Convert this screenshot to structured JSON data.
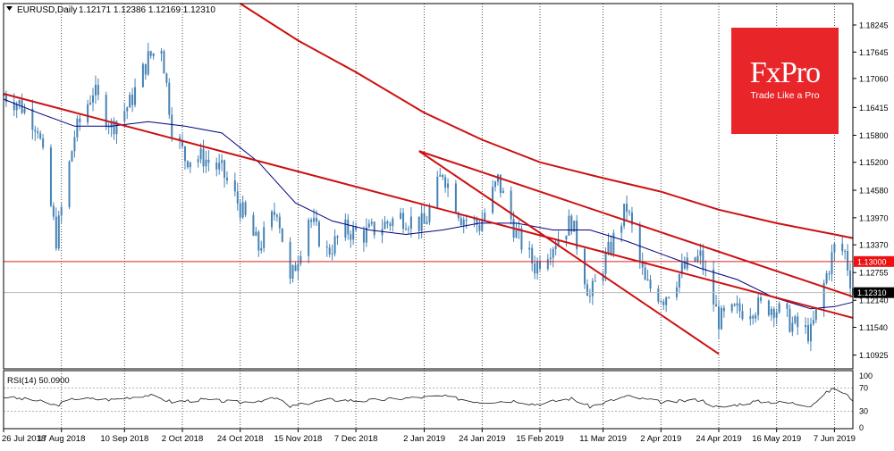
{
  "header": {
    "symbol": "EURUSD,Daily",
    "ohlc": "1.12171 1.12386 1.12169 1.12310"
  },
  "brand": {
    "name": "FxPro",
    "tagline": "Trade Like a Pro"
  },
  "colors": {
    "candle": "#4682b4",
    "ma_fast": "#00007f",
    "ma_slow": "#cc1111",
    "channel": "#cc1111",
    "level_line": "#dd2222",
    "level_badge": "#ee1111",
    "price_badge": "#000000",
    "rsi_line": "#1a1a1a",
    "brand_bg": "#e8262a"
  },
  "chart_data": {
    "type": "candlestick",
    "symbol": "EURUSD",
    "timeframe": "Daily",
    "x_range": [
      "2018-07-26",
      "2019-06-14"
    ],
    "ylim": [
      1.1062,
      1.1872
    ],
    "y_ticks": [
      "1.18245",
      "1.17645",
      "1.17060",
      "1.16415",
      "1.15800",
      "1.15200",
      "1.14580",
      "1.13970",
      "1.13370",
      "1.12755",
      "1.12140",
      "1.11540",
      "1.10925"
    ],
    "x_ticks": [
      "26 Jul 2018",
      "17 Aug 2018",
      "10 Sep 2018",
      "2 Oct 2018",
      "24 Oct 2018",
      "15 Nov 2018",
      "7 Dec 2018",
      "2 Jan 2019",
      "24 Jan 2019",
      "15 Feb 2019",
      "11 Mar 2019",
      "2 Apr 2019",
      "24 Apr 2019",
      "16 May 2019",
      "7 Jun 2019"
    ],
    "close_path": [
      [
        "2018-07-26",
        1.167
      ],
      [
        "2018-08-01",
        1.165
      ],
      [
        "2018-08-08",
        1.16
      ],
      [
        "2018-08-15",
        1.135
      ],
      [
        "2018-08-22",
        1.158
      ],
      [
        "2018-08-29",
        1.168
      ],
      [
        "2018-09-05",
        1.16
      ],
      [
        "2018-09-12",
        1.165
      ],
      [
        "2018-09-19",
        1.175
      ],
      [
        "2018-09-24",
        1.178
      ],
      [
        "2018-09-28",
        1.16
      ],
      [
        "2018-10-03",
        1.153
      ],
      [
        "2018-10-10",
        1.153
      ],
      [
        "2018-10-17",
        1.15
      ],
      [
        "2018-10-24",
        1.142
      ],
      [
        "2018-10-31",
        1.133
      ],
      [
        "2018-11-07",
        1.142
      ],
      [
        "2018-11-12",
        1.125
      ],
      [
        "2018-11-19",
        1.14
      ],
      [
        "2018-11-26",
        1.132
      ],
      [
        "2018-12-03",
        1.137
      ],
      [
        "2018-12-10",
        1.136
      ],
      [
        "2018-12-17",
        1.138
      ],
      [
        "2018-12-24",
        1.14
      ],
      [
        "2019-01-02",
        1.138
      ],
      [
        "2019-01-09",
        1.15
      ],
      [
        "2019-01-16",
        1.14
      ],
      [
        "2019-01-23",
        1.138
      ],
      [
        "2019-01-30",
        1.148
      ],
      [
        "2019-02-06",
        1.136
      ],
      [
        "2019-02-13",
        1.129
      ],
      [
        "2019-02-20",
        1.134
      ],
      [
        "2019-02-27",
        1.139
      ],
      [
        "2019-03-06",
        1.122
      ],
      [
        "2019-03-13",
        1.132
      ],
      [
        "2019-03-20",
        1.142
      ],
      [
        "2019-03-27",
        1.125
      ],
      [
        "2019-04-03",
        1.122
      ],
      [
        "2019-04-10",
        1.128
      ],
      [
        "2019-04-17",
        1.131
      ],
      [
        "2019-04-24",
        1.117
      ],
      [
        "2019-05-01",
        1.119
      ],
      [
        "2019-05-08",
        1.12
      ],
      [
        "2019-05-15",
        1.12
      ],
      [
        "2019-05-22",
        1.116
      ],
      [
        "2019-05-29",
        1.114
      ],
      [
        "2019-06-04",
        1.127
      ],
      [
        "2019-06-07",
        1.133
      ],
      [
        "2019-06-11",
        1.132
      ],
      [
        "2019-06-14",
        1.1231
      ]
    ],
    "ma_fast_path": [
      [
        "2018-07-26",
        1.166
      ],
      [
        "2018-08-08",
        1.163
      ],
      [
        "2018-08-22",
        1.16
      ],
      [
        "2018-09-05",
        1.16
      ],
      [
        "2018-09-19",
        1.161
      ],
      [
        "2018-10-03",
        1.16
      ],
      [
        "2018-10-17",
        1.1585
      ],
      [
        "2018-10-31",
        1.152
      ],
      [
        "2018-11-14",
        1.143
      ],
      [
        "2018-11-28",
        1.139
      ],
      [
        "2018-12-12",
        1.137
      ],
      [
        "2018-12-26",
        1.136
      ],
      [
        "2019-01-09",
        1.137
      ],
      [
        "2019-01-23",
        1.1385
      ],
      [
        "2019-02-06",
        1.1385
      ],
      [
        "2019-02-20",
        1.137
      ],
      [
        "2019-03-06",
        1.137
      ],
      [
        "2019-03-20",
        1.1345
      ],
      [
        "2019-04-03",
        1.1315
      ],
      [
        "2019-04-17",
        1.1285
      ],
      [
        "2019-05-01",
        1.126
      ],
      [
        "2019-05-15",
        1.122
      ],
      [
        "2019-05-29",
        1.1195
      ],
      [
        "2019-06-07",
        1.12
      ],
      [
        "2019-06-14",
        1.121
      ]
    ],
    "ma_slow_path": [
      [
        "2018-10-24",
        1.1872
      ],
      [
        "2018-11-15",
        1.179
      ],
      [
        "2018-12-07",
        1.172
      ],
      [
        "2019-01-02",
        1.163
      ],
      [
        "2019-01-24",
        1.157
      ],
      [
        "2019-02-15",
        1.152
      ],
      [
        "2019-03-11",
        1.1485
      ],
      [
        "2019-04-02",
        1.1455
      ],
      [
        "2019-04-24",
        1.1415
      ],
      [
        "2019-05-16",
        1.1385
      ],
      [
        "2019-06-07",
        1.136
      ],
      [
        "2019-06-14",
        1.1352
      ]
    ],
    "channel_lines": [
      [
        [
          "2018-07-26",
          1.1672
        ],
        [
          "2019-06-14",
          1.1175
        ]
      ],
      [
        [
          "2018-12-31",
          1.1545
        ],
        [
          "2019-04-24",
          1.1095
        ]
      ],
      [
        [
          "2018-12-31",
          1.1545
        ],
        [
          "2019-06-14",
          1.1222
        ]
      ]
    ],
    "horizontal_levels": [
      {
        "value": 1.13,
        "label": "1.13000"
      }
    ],
    "current_price": {
      "value": 1.1231,
      "label": "1.12310"
    },
    "rsi": {
      "label": "RSI(14) 50.0900",
      "period": 14,
      "last": 50.09,
      "levels": [
        70,
        30
      ],
      "y_ticks": [
        "100",
        "70",
        "30",
        "0"
      ],
      "path": [
        [
          "2018-07-26",
          55
        ],
        [
          "2018-08-08",
          48
        ],
        [
          "2018-08-15",
          40
        ],
        [
          "2018-08-22",
          52
        ],
        [
          "2018-09-05",
          50
        ],
        [
          "2018-09-19",
          58
        ],
        [
          "2018-09-28",
          46
        ],
        [
          "2018-10-10",
          50
        ],
        [
          "2018-10-24",
          45
        ],
        [
          "2018-11-07",
          52
        ],
        [
          "2018-11-12",
          38
        ],
        [
          "2018-11-26",
          50
        ],
        [
          "2018-12-10",
          48
        ],
        [
          "2018-12-24",
          52
        ],
        [
          "2019-01-09",
          56
        ],
        [
          "2019-01-23",
          46
        ],
        [
          "2019-02-06",
          48
        ],
        [
          "2019-02-13",
          42
        ],
        [
          "2019-02-27",
          52
        ],
        [
          "2019-03-06",
          38
        ],
        [
          "2019-03-20",
          56
        ],
        [
          "2019-04-03",
          45
        ],
        [
          "2019-04-17",
          50
        ],
        [
          "2019-04-24",
          36
        ],
        [
          "2019-05-08",
          47
        ],
        [
          "2019-05-22",
          44
        ],
        [
          "2019-05-29",
          40
        ],
        [
          "2019-06-04",
          62
        ],
        [
          "2019-06-07",
          70
        ],
        [
          "2019-06-11",
          60
        ],
        [
          "2019-06-14",
          50
        ]
      ]
    }
  }
}
